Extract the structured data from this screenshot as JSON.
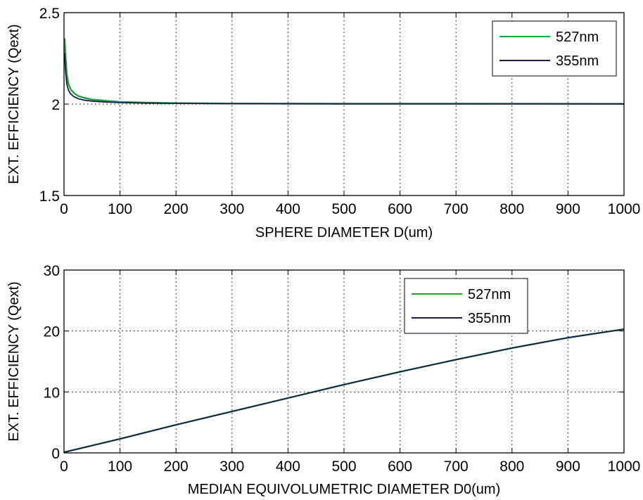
{
  "colors": {
    "s527": "#1aa33a",
    "s355": "#1c1c4a",
    "axis": "#000000",
    "grid": "#000000",
    "background": "#ffffff"
  },
  "chart_data": [
    {
      "type": "line",
      "xlabel": "SPHERE DIAMETER D(um)",
      "ylabel": "EXT. EFFICIENCY (Qext)",
      "xlim": [
        0,
        1000
      ],
      "ylim": [
        1.5,
        2.5
      ],
      "xticks": [
        "0",
        "100",
        "200",
        "300",
        "400",
        "500",
        "600",
        "700",
        "800",
        "900",
        "1000"
      ],
      "yticks": [
        "1.5",
        "2",
        "2.5"
      ],
      "grid": true,
      "legend_position": "top-right",
      "series": [
        {
          "name": "527nm",
          "color": "#1aa33a",
          "x": [
            1,
            3,
            5,
            8,
            12,
            18,
            25,
            35,
            50,
            75,
            100,
            150,
            200,
            300,
            500,
            700,
            1000
          ],
          "y": [
            2.36,
            2.25,
            2.16,
            2.11,
            2.08,
            2.06,
            2.045,
            2.035,
            2.025,
            2.018,
            2.012,
            2.008,
            2.005,
            2.003,
            2.002,
            2.002,
            2.001
          ]
        },
        {
          "name": "355nm",
          "color": "#1c1c4a",
          "x": [
            1,
            3,
            5,
            8,
            12,
            18,
            25,
            35,
            50,
            75,
            100,
            150,
            200,
            300,
            500,
            700,
            1000
          ],
          "y": [
            2.28,
            2.17,
            2.11,
            2.075,
            2.055,
            2.04,
            2.03,
            2.022,
            2.016,
            2.011,
            2.008,
            2.005,
            2.004,
            2.002,
            2.001,
            2.001,
            2.001
          ]
        }
      ]
    },
    {
      "type": "line",
      "xlabel": "MEDIAN EQUIVOLUMETRIC DIAMETER D0(um)",
      "ylabel": "EXT. EFFICIENCY (Qext)",
      "xlim": [
        0,
        1000
      ],
      "ylim": [
        0,
        30
      ],
      "xticks": [
        "0",
        "100",
        "200",
        "300",
        "400",
        "500",
        "600",
        "700",
        "800",
        "900",
        "1000"
      ],
      "yticks": [
        "0",
        "10",
        "20",
        "30"
      ],
      "grid": true,
      "legend_position": "upper-center-right",
      "series": [
        {
          "name": "527nm",
          "color": "#1aa33a",
          "x": [
            0,
            100,
            200,
            300,
            400,
            500,
            600,
            700,
            800,
            900,
            1000
          ],
          "y": [
            0.1,
            2.3,
            4.6,
            6.8,
            9.0,
            11.2,
            13.3,
            15.3,
            17.2,
            18.9,
            20.3
          ]
        },
        {
          "name": "355nm",
          "color": "#1c1c4a",
          "x": [
            0,
            100,
            200,
            300,
            400,
            500,
            600,
            700,
            800,
            900,
            1000
          ],
          "y": [
            0.1,
            2.3,
            4.6,
            6.8,
            9.0,
            11.2,
            13.3,
            15.3,
            17.2,
            18.9,
            20.3
          ]
        }
      ]
    }
  ]
}
